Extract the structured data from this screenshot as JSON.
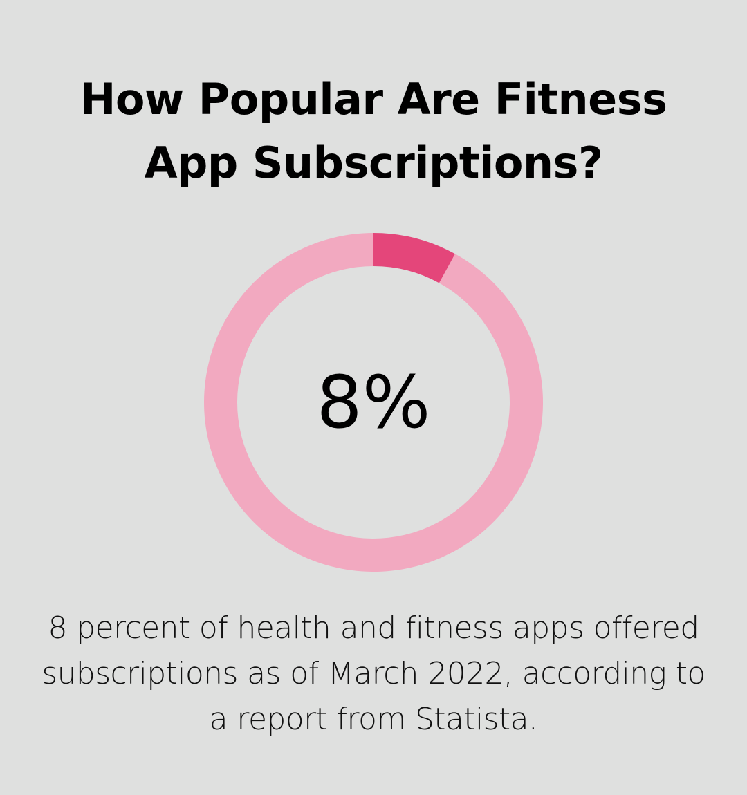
{
  "header": {
    "title_lines": [
      "How Popular Are Fitness",
      "App Subscriptions?"
    ]
  },
  "chart_data": {
    "type": "pie",
    "variant": "donut",
    "value": 8,
    "total": 100,
    "center_label": "8%",
    "slices": [
      {
        "value": 8,
        "color": "#e4467a"
      },
      {
        "value": 92,
        "color": "#f2a9c0"
      }
    ]
  },
  "caption": {
    "lines": [
      "8 percent of health and fitness apps offered",
      "subscriptions as of March 2022, according to",
      "a report from Statista."
    ]
  },
  "colors": {
    "background": "#dfe0df",
    "accent": "#e4467a",
    "ring": "#f2a9c0"
  }
}
